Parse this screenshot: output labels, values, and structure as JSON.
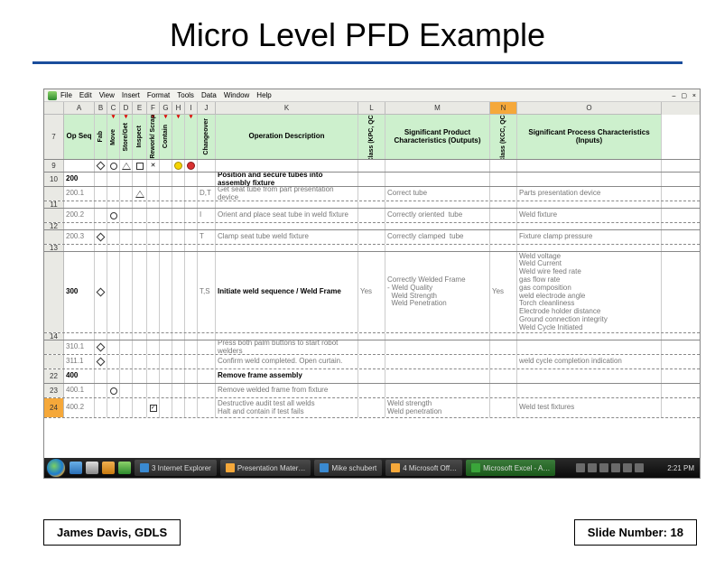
{
  "slide": {
    "title": "Micro Level PFD Example",
    "author": "James Davis, GDLS",
    "slide_number_label": "Slide Number: 18"
  },
  "excel": {
    "menus": [
      "File",
      "Edit",
      "View",
      "Insert",
      "Format",
      "Tools",
      "Data",
      "Window",
      "Help"
    ],
    "window_controls": "– ▢ ×",
    "col_letters": [
      "A",
      "B",
      "C",
      "D",
      "E",
      "F",
      "G",
      "H",
      "I",
      "J",
      "K",
      "L",
      "M",
      "N",
      "O"
    ],
    "highlighted_col": "N",
    "row_labels": [
      "7",
      "",
      "9",
      "10",
      "",
      "",
      "11",
      "",
      "12",
      "",
      "13",
      "",
      "",
      "",
      "",
      "14",
      "",
      "",
      "22",
      "23",
      "24"
    ],
    "row_labels_actual": [
      "7",
      "9",
      "10",
      "11",
      "12",
      "13",
      "14",
      "22",
      "23",
      "24"
    ],
    "selected_row_label": "24",
    "header": {
      "A": "Op Seq",
      "B": "Fab",
      "C": "Move",
      "D": "Store/Get",
      "E": "Inspect",
      "F": "Rework/ Scrap",
      "G": "Contain",
      "H": "",
      "I": "",
      "J": "Changeover",
      "K": "Operation Description",
      "L": "Class (KPC, QCI)",
      "M": "Significant Product Characteristics (Outputs)",
      "N": "Class (KCC, QCI)",
      "O": "Significant Process Characteristics (Inputs)"
    },
    "rows": [
      {
        "rl": "7",
        "type": "header"
      },
      {
        "rl": "9",
        "type": "blank"
      },
      {
        "rl": "10",
        "A": "200",
        "K": "Position and secure tubes into assembly fixture",
        "bold": true,
        "cls": "solid"
      },
      {
        "rl": "",
        "A": "200.1",
        "E": "triangle",
        "J": "D,T",
        "K": "Get seat tube from part presentation device",
        "M": "Correct tube",
        "O": "Parts presentation device"
      },
      {
        "rl": "11",
        "type": "blank-solid"
      },
      {
        "rl": "",
        "A": "200.2",
        "C": "circle",
        "J": "I",
        "K": "Orient and place seat tube in weld fixture",
        "M": "Correctly oriented  tube",
        "O": "Weld fixture"
      },
      {
        "rl": "12",
        "type": "blank-solid"
      },
      {
        "rl": "",
        "A": "200.3",
        "B": "diamond",
        "J": "T",
        "K": "Clamp seat tube weld fixture",
        "M": "Correctly clamped  tube",
        "O": "Fixture clamp pressure"
      },
      {
        "rl": "13",
        "type": "blank-solid"
      },
      {
        "rl": "",
        "A": "300",
        "B": "diamond",
        "J": "T,S",
        "K": "Initiate weld sequence / Weld Frame",
        "L": "Yes",
        "M": "Correctly Welded Frame\n- Weld Quality\n  Weld Strength\n  Weld Penetration",
        "N": "Yes",
        "O": "Weld voltage\nWeld Current\nWeld wire feed rate\ngas flow rate\ngas composition\nweld electrode angle\nTorch cleanliness\nElectrode holder distance\nGround connection integrity\nWeld Cycle Initiated",
        "bold": true,
        "tall": true
      },
      {
        "rl": "14",
        "type": "blank-solid"
      },
      {
        "rl": "",
        "A": "310.1",
        "B": "diamond",
        "K": "Press both palm buttons to start robot welders"
      },
      {
        "rl": "",
        "A": "311.1",
        "B": "diamond",
        "K": "Confirm weld completed. Open curtain.",
        "O": "weld cycle completion indication"
      },
      {
        "rl": "22",
        "A": "400",
        "K": "Remove frame assembly",
        "bold": true,
        "cls": "solid"
      },
      {
        "rl": "23",
        "A": "400.1",
        "C": "circle",
        "K": "Remove welded frame from fixture"
      },
      {
        "rl": "24",
        "A": "400.2",
        "F": "sq-check",
        "K": "Destructive audit test all welds\nHalt and contain if test fails",
        "M": "Weld strength\nWeld penetration",
        "O": "Weld test fixtures",
        "sel": true
      }
    ],
    "tray_count": 6,
    "clock": "2:21 PM",
    "taskbar": [
      {
        "label": "3 Internet Explorer",
        "icon": "b"
      },
      {
        "label": "Presentation Mater…",
        "icon": "o"
      },
      {
        "label": "Mike schubert",
        "icon": "b"
      },
      {
        "label": "4 Microsoft Off…",
        "icon": "o"
      },
      {
        "label": "Microsoft Excel - A…",
        "icon": "g",
        "active": true
      }
    ]
  }
}
